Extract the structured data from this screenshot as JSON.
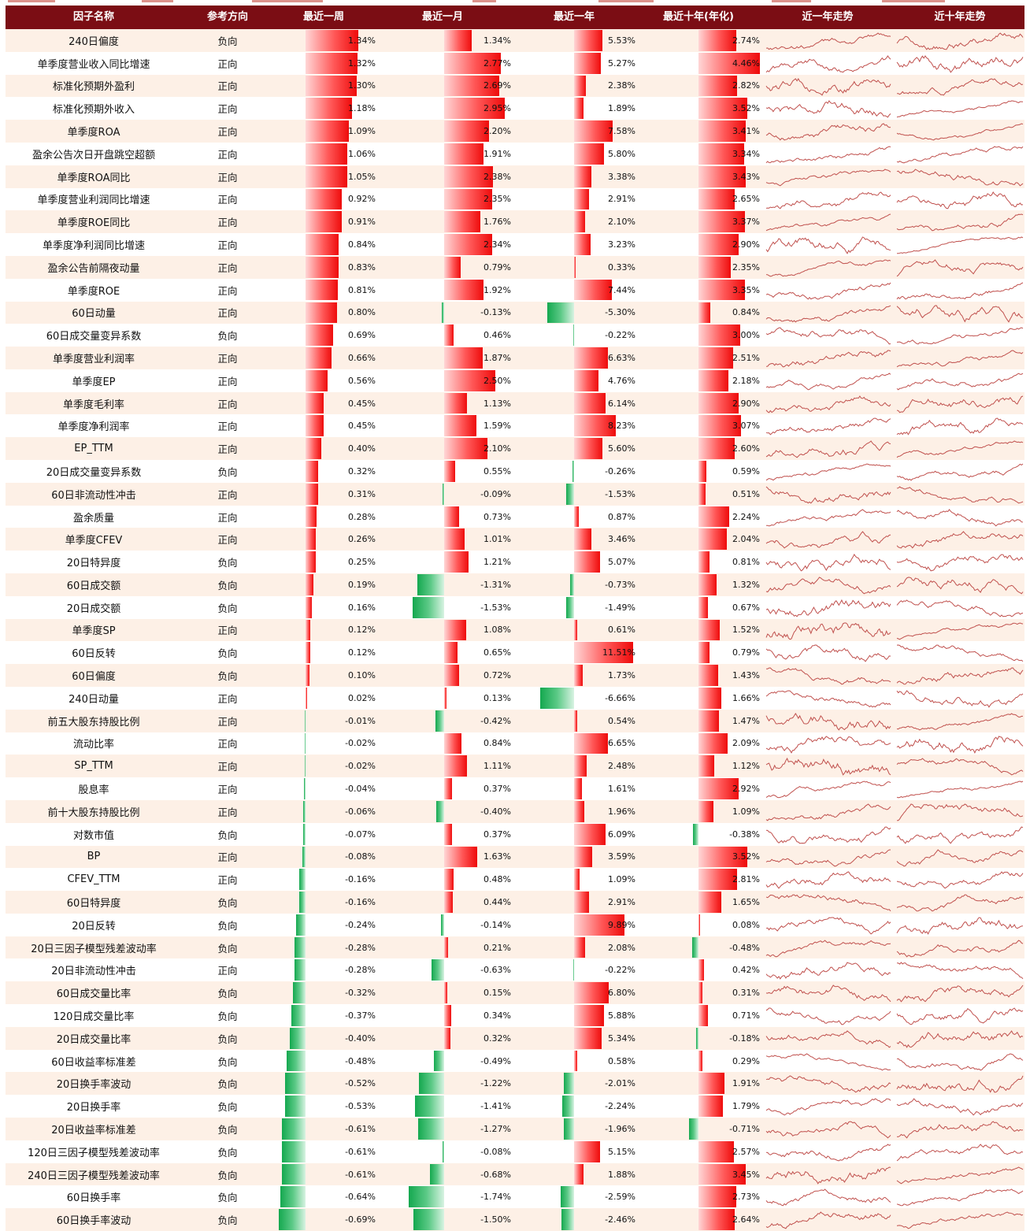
{
  "colors": {
    "header_bg": "#7b0d14",
    "positive": "#ee0b0b",
    "negative": "#14a84f",
    "row_band": "#fdf0e6",
    "trend": "#c0504d"
  },
  "chart_data": {
    "type": "table",
    "columns": [
      "因子名称",
      "参考方向",
      "最近一周",
      "最近一月",
      "最近一年",
      "最近十年(年化)",
      "近一年走势",
      "近十年走势"
    ],
    "rows": [
      {
        "name": "240日偏度",
        "direction": "负向",
        "week": "1.34%",
        "month": "1.34%",
        "year": "5.53%",
        "decade": "2.74%"
      },
      {
        "name": "单季度营业收入同比增速",
        "direction": "正向",
        "week": "1.32%",
        "month": "2.77%",
        "year": "5.27%",
        "decade": "4.46%"
      },
      {
        "name": "标准化预期外盈利",
        "direction": "正向",
        "week": "1.30%",
        "month": "2.69%",
        "year": "2.38%",
        "decade": "2.82%"
      },
      {
        "name": "标准化预期外收入",
        "direction": "正向",
        "week": "1.18%",
        "month": "2.95%",
        "year": "1.89%",
        "decade": "3.52%"
      },
      {
        "name": "单季度ROA",
        "direction": "正向",
        "week": "1.09%",
        "month": "2.20%",
        "year": "7.58%",
        "decade": "3.41%"
      },
      {
        "name": "盈余公告次日开盘跳空超额",
        "direction": "正向",
        "week": "1.06%",
        "month": "1.91%",
        "year": "5.80%",
        "decade": "3.34%"
      },
      {
        "name": "单季度ROA同比",
        "direction": "正向",
        "week": "1.05%",
        "month": "2.38%",
        "year": "3.38%",
        "decade": "3.43%"
      },
      {
        "name": "单季度营业利润同比增速",
        "direction": "正向",
        "week": "0.92%",
        "month": "2.35%",
        "year": "2.91%",
        "decade": "2.65%"
      },
      {
        "name": "单季度ROE同比",
        "direction": "正向",
        "week": "0.91%",
        "month": "1.76%",
        "year": "2.10%",
        "decade": "3.37%"
      },
      {
        "name": "单季度净利润同比增速",
        "direction": "正向",
        "week": "0.84%",
        "month": "2.34%",
        "year": "3.23%",
        "decade": "2.90%"
      },
      {
        "name": "盈余公告前隔夜动量",
        "direction": "正向",
        "week": "0.83%",
        "month": "0.79%",
        "year": "0.33%",
        "decade": "2.35%"
      },
      {
        "name": "单季度ROE",
        "direction": "正向",
        "week": "0.81%",
        "month": "1.92%",
        "year": "7.44%",
        "decade": "3.35%"
      },
      {
        "name": "60日动量",
        "direction": "正向",
        "week": "0.80%",
        "month": "-0.13%",
        "year": "-5.30%",
        "decade": "0.84%"
      },
      {
        "name": "60日成交量变异系数",
        "direction": "负向",
        "week": "0.69%",
        "month": "0.46%",
        "year": "-0.22%",
        "decade": "3.00%"
      },
      {
        "name": "单季度营业利润率",
        "direction": "正向",
        "week": "0.66%",
        "month": "1.87%",
        "year": "6.63%",
        "decade": "2.51%"
      },
      {
        "name": "单季度EP",
        "direction": "正向",
        "week": "0.56%",
        "month": "2.50%",
        "year": "4.76%",
        "decade": "2.18%"
      },
      {
        "name": "单季度毛利率",
        "direction": "正向",
        "week": "0.45%",
        "month": "1.13%",
        "year": "6.14%",
        "decade": "2.90%"
      },
      {
        "name": "单季度净利润率",
        "direction": "正向",
        "week": "0.45%",
        "month": "1.59%",
        "year": "8.23%",
        "decade": "3.07%"
      },
      {
        "name": "EP_TTM",
        "direction": "正向",
        "week": "0.40%",
        "month": "2.10%",
        "year": "5.60%",
        "decade": "2.60%"
      },
      {
        "name": "20日成交量变异系数",
        "direction": "负向",
        "week": "0.32%",
        "month": "0.55%",
        "year": "-0.26%",
        "decade": "0.59%"
      },
      {
        "name": "60日非流动性冲击",
        "direction": "正向",
        "week": "0.31%",
        "month": "-0.09%",
        "year": "-1.53%",
        "decade": "0.51%"
      },
      {
        "name": "盈余质量",
        "direction": "正向",
        "week": "0.28%",
        "month": "0.73%",
        "year": "0.87%",
        "decade": "2.24%"
      },
      {
        "name": "单季度CFEV",
        "direction": "正向",
        "week": "0.26%",
        "month": "1.01%",
        "year": "3.46%",
        "decade": "2.04%"
      },
      {
        "name": "20日特异度",
        "direction": "负向",
        "week": "0.25%",
        "month": "1.21%",
        "year": "5.07%",
        "decade": "0.81%"
      },
      {
        "name": "60日成交额",
        "direction": "负向",
        "week": "0.19%",
        "month": "-1.31%",
        "year": "-0.73%",
        "decade": "1.32%"
      },
      {
        "name": "20日成交额",
        "direction": "负向",
        "week": "0.16%",
        "month": "-1.53%",
        "year": "-1.49%",
        "decade": "0.67%"
      },
      {
        "name": "单季度SP",
        "direction": "正向",
        "week": "0.12%",
        "month": "1.08%",
        "year": "0.61%",
        "decade": "1.52%"
      },
      {
        "name": "60日反转",
        "direction": "负向",
        "week": "0.12%",
        "month": "0.65%",
        "year": "11.51%",
        "decade": "0.79%"
      },
      {
        "name": "60日偏度",
        "direction": "负向",
        "week": "0.10%",
        "month": "0.72%",
        "year": "1.73%",
        "decade": "1.43%"
      },
      {
        "name": "240日动量",
        "direction": "正向",
        "week": "0.02%",
        "month": "0.13%",
        "year": "-6.66%",
        "decade": "1.66%"
      },
      {
        "name": "前五大股东持股比例",
        "direction": "正向",
        "week": "-0.01%",
        "month": "-0.42%",
        "year": "0.54%",
        "decade": "1.47%"
      },
      {
        "name": "流动比率",
        "direction": "正向",
        "week": "-0.02%",
        "month": "0.84%",
        "year": "6.65%",
        "decade": "2.09%"
      },
      {
        "name": "SP_TTM",
        "direction": "正向",
        "week": "-0.02%",
        "month": "1.11%",
        "year": "2.48%",
        "decade": "1.12%"
      },
      {
        "name": "股息率",
        "direction": "正向",
        "week": "-0.04%",
        "month": "0.37%",
        "year": "1.61%",
        "decade": "2.92%"
      },
      {
        "name": "前十大股东持股比例",
        "direction": "正向",
        "week": "-0.06%",
        "month": "-0.40%",
        "year": "1.96%",
        "decade": "1.09%"
      },
      {
        "name": "对数市值",
        "direction": "负向",
        "week": "-0.07%",
        "month": "0.37%",
        "year": "6.09%",
        "decade": "-0.38%"
      },
      {
        "name": "BP",
        "direction": "正向",
        "week": "-0.08%",
        "month": "1.63%",
        "year": "3.59%",
        "decade": "3.52%"
      },
      {
        "name": "CFEV_TTM",
        "direction": "正向",
        "week": "-0.16%",
        "month": "0.48%",
        "year": "1.09%",
        "decade": "2.81%"
      },
      {
        "name": "60日特异度",
        "direction": "负向",
        "week": "-0.16%",
        "month": "0.44%",
        "year": "2.91%",
        "decade": "1.65%"
      },
      {
        "name": "20日反转",
        "direction": "负向",
        "week": "-0.24%",
        "month": "-0.14%",
        "year": "9.89%",
        "decade": "0.08%"
      },
      {
        "name": "20日三因子模型残差波动率",
        "direction": "负向",
        "week": "-0.28%",
        "month": "0.21%",
        "year": "2.08%",
        "decade": "-0.48%"
      },
      {
        "name": "20日非流动性冲击",
        "direction": "正向",
        "week": "-0.28%",
        "month": "-0.63%",
        "year": "-0.22%",
        "decade": "0.42%"
      },
      {
        "name": "60日成交量比率",
        "direction": "负向",
        "week": "-0.32%",
        "month": "0.15%",
        "year": "6.80%",
        "decade": "0.31%"
      },
      {
        "name": "120日成交量比率",
        "direction": "负向",
        "week": "-0.37%",
        "month": "0.34%",
        "year": "5.88%",
        "decade": "0.71%"
      },
      {
        "name": "20日成交量比率",
        "direction": "负向",
        "week": "-0.40%",
        "month": "0.32%",
        "year": "5.34%",
        "decade": "-0.18%"
      },
      {
        "name": "60日收益率标准差",
        "direction": "负向",
        "week": "-0.48%",
        "month": "-0.49%",
        "year": "0.58%",
        "decade": "0.29%"
      },
      {
        "name": "20日换手率波动",
        "direction": "负向",
        "week": "-0.52%",
        "month": "-1.22%",
        "year": "-2.01%",
        "decade": "1.91%"
      },
      {
        "name": "20日换手率",
        "direction": "负向",
        "week": "-0.53%",
        "month": "-1.41%",
        "year": "-2.24%",
        "decade": "1.79%"
      },
      {
        "name": "20日收益率标准差",
        "direction": "负向",
        "week": "-0.61%",
        "month": "-1.27%",
        "year": "-1.96%",
        "decade": "-0.71%"
      },
      {
        "name": "120日三因子模型残差波动率",
        "direction": "负向",
        "week": "-0.61%",
        "month": "-0.08%",
        "year": "5.15%",
        "decade": "2.57%"
      },
      {
        "name": "240日三因子模型残差波动率",
        "direction": "负向",
        "week": "-0.61%",
        "month": "-0.68%",
        "year": "1.88%",
        "decade": "3.45%"
      },
      {
        "name": "60日换手率",
        "direction": "负向",
        "week": "-0.64%",
        "month": "-1.74%",
        "year": "-2.59%",
        "decade": "2.73%"
      },
      {
        "name": "60日换手率波动",
        "direction": "负向",
        "week": "-0.69%",
        "month": "-1.50%",
        "year": "-2.46%",
        "decade": "2.64%"
      }
    ]
  }
}
